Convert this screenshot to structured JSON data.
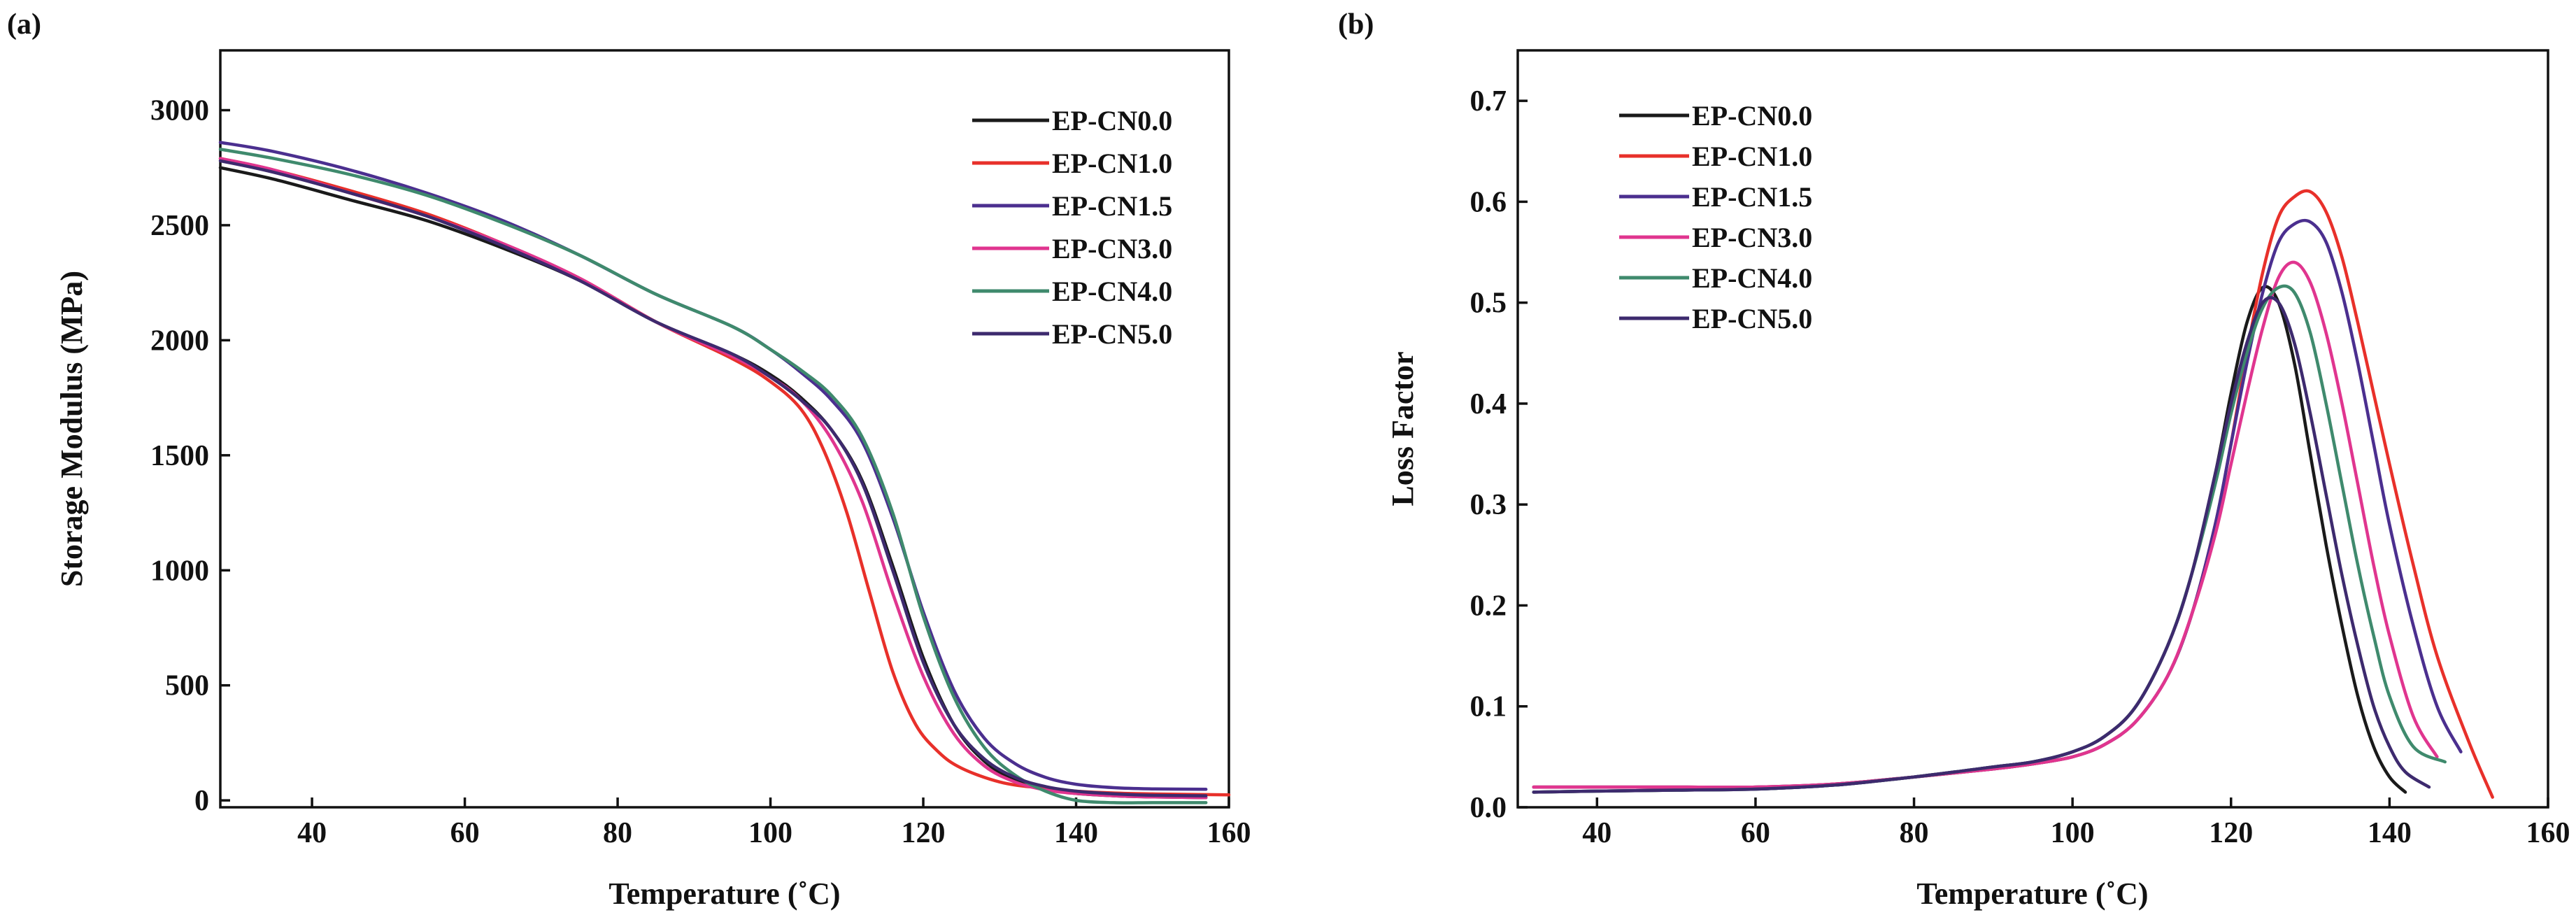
{
  "chart_data": [
    {
      "type": "line",
      "panel_label": "(a)",
      "title": "",
      "xlabel": "Temperature (˚C)",
      "ylabel": "Storage Modulus (MPa)",
      "xlim": [
        28,
        160
      ],
      "ylim": [
        -30,
        3260
      ],
      "xticks": [
        "40",
        "60",
        "80",
        "100",
        "120",
        "140",
        "160"
      ],
      "yticks": [
        "0",
        "500",
        "1000",
        "1500",
        "2000",
        "2500",
        "3000"
      ],
      "legend_position": "top-right",
      "series": [
        {
          "name": "EP-CN0.0",
          "color": "#1a1a1a",
          "x": [
            28,
            35,
            45,
            55,
            65,
            75,
            85,
            95,
            100,
            104,
            108,
            112,
            116,
            120,
            124,
            128,
            132,
            136,
            140,
            145,
            150,
            157
          ],
          "y": [
            2750,
            2700,
            2610,
            2520,
            2400,
            2260,
            2080,
            1940,
            1850,
            1750,
            1610,
            1390,
            1020,
            620,
            330,
            170,
            90,
            50,
            30,
            20,
            15,
            12
          ]
        },
        {
          "name": "EP-CN1.0",
          "color": "#e8302a",
          "x": [
            28,
            35,
            45,
            55,
            65,
            75,
            85,
            95,
            100,
            104,
            107,
            110,
            113,
            116,
            119,
            122,
            125,
            130,
            135,
            140,
            145,
            150,
            157,
            160
          ],
          "y": [
            2790,
            2740,
            2650,
            2550,
            2420,
            2270,
            2080,
            1920,
            1820,
            1700,
            1520,
            1250,
            900,
            560,
            330,
            210,
            140,
            80,
            55,
            40,
            32,
            28,
            25,
            24
          ]
        },
        {
          "name": "EP-CN1.5",
          "color": "#4b2f8f",
          "x": [
            28,
            35,
            45,
            55,
            65,
            75,
            85,
            95,
            100,
            104,
            108,
            112,
            116,
            120,
            124,
            128,
            132,
            136,
            140,
            145,
            150,
            157
          ],
          "y": [
            2860,
            2820,
            2740,
            2640,
            2520,
            2370,
            2200,
            2060,
            1960,
            1860,
            1740,
            1560,
            1230,
            820,
            480,
            270,
            160,
            100,
            70,
            55,
            50,
            48
          ]
        },
        {
          "name": "EP-CN3.0",
          "color": "#e0358f",
          "x": [
            28,
            35,
            45,
            55,
            65,
            75,
            85,
            95,
            100,
            104,
            108,
            112,
            116,
            120,
            124,
            128,
            132,
            136,
            140,
            145,
            150,
            157
          ],
          "y": [
            2790,
            2740,
            2640,
            2540,
            2420,
            2270,
            2080,
            1930,
            1840,
            1740,
            1570,
            1300,
            900,
            540,
            290,
            150,
            80,
            45,
            30,
            20,
            15,
            12
          ]
        },
        {
          "name": "EP-CN4.0",
          "color": "#3f8a6d",
          "x": [
            28,
            35,
            45,
            55,
            65,
            75,
            85,
            95,
            100,
            104,
            108,
            112,
            116,
            120,
            124,
            128,
            132,
            136,
            140,
            145,
            150,
            157
          ],
          "y": [
            2830,
            2790,
            2720,
            2630,
            2510,
            2370,
            2200,
            2060,
            1960,
            1870,
            1760,
            1580,
            1250,
            800,
            450,
            230,
            110,
            40,
            0,
            -10,
            -10,
            -10
          ]
        },
        {
          "name": "EP-CN5.0",
          "color": "#3d2a6e",
          "x": [
            28,
            35,
            45,
            55,
            65,
            75,
            85,
            95,
            100,
            104,
            108,
            112,
            116,
            120,
            124,
            128,
            132,
            136,
            140,
            145,
            150,
            157
          ],
          "y": [
            2780,
            2730,
            2640,
            2540,
            2410,
            2260,
            2080,
            1940,
            1840,
            1740,
            1610,
            1380,
            1000,
            600,
            330,
            180,
            100,
            60,
            40,
            28,
            22,
            20
          ]
        }
      ]
    },
    {
      "type": "line",
      "panel_label": "(b)",
      "title": "",
      "xlabel": "Temperature (˚C)",
      "ylabel": "Loss Factor",
      "xlim": [
        30,
        160
      ],
      "ylim": [
        0.0,
        0.75
      ],
      "xticks": [
        "40",
        "60",
        "80",
        "100",
        "120",
        "140",
        "160"
      ],
      "yticks": [
        "0.0",
        "0.1",
        "0.2",
        "0.3",
        "0.4",
        "0.5",
        "0.6",
        "0.7"
      ],
      "legend_position": "top-left",
      "series": [
        {
          "name": "EP-CN0.0",
          "color": "#1a1a1a",
          "x": [
            32,
            40,
            50,
            60,
            70,
            80,
            90,
            95,
            100,
            104,
            108,
            112,
            115,
            118,
            120,
            122,
            124,
            126,
            128,
            130,
            132,
            134,
            136,
            138,
            140,
            142
          ],
          "y": [
            0.015,
            0.016,
            0.017,
            0.018,
            0.022,
            0.03,
            0.04,
            0.045,
            0.055,
            0.07,
            0.1,
            0.16,
            0.23,
            0.33,
            0.41,
            0.48,
            0.515,
            0.5,
            0.44,
            0.35,
            0.26,
            0.18,
            0.11,
            0.06,
            0.03,
            0.015
          ]
        },
        {
          "name": "EP-CN1.0",
          "color": "#e8302a",
          "x": [
            32,
            40,
            50,
            60,
            70,
            80,
            90,
            95,
            100,
            104,
            108,
            112,
            115,
            118,
            120,
            122,
            124,
            126,
            128,
            130,
            132,
            134,
            136,
            138,
            140,
            143,
            146,
            150,
            153
          ],
          "y": [
            0.02,
            0.02,
            0.02,
            0.02,
            0.023,
            0.03,
            0.038,
            0.043,
            0.05,
            0.062,
            0.085,
            0.13,
            0.19,
            0.28,
            0.36,
            0.45,
            0.53,
            0.585,
            0.605,
            0.61,
            0.59,
            0.545,
            0.48,
            0.41,
            0.34,
            0.24,
            0.15,
            0.065,
            0.01
          ]
        },
        {
          "name": "EP-CN1.5",
          "color": "#4b2f8f",
          "x": [
            32,
            40,
            50,
            60,
            70,
            80,
            90,
            95,
            100,
            104,
            108,
            112,
            115,
            118,
            120,
            122,
            124,
            126,
            128,
            130,
            132,
            134,
            136,
            138,
            140,
            143,
            146,
            149
          ],
          "y": [
            0.02,
            0.02,
            0.02,
            0.02,
            0.023,
            0.03,
            0.038,
            0.043,
            0.05,
            0.062,
            0.085,
            0.13,
            0.19,
            0.28,
            0.36,
            0.44,
            0.51,
            0.56,
            0.578,
            0.58,
            0.56,
            0.51,
            0.44,
            0.36,
            0.28,
            0.18,
            0.1,
            0.055
          ]
        },
        {
          "name": "EP-CN3.0",
          "color": "#e0358f",
          "x": [
            32,
            40,
            50,
            60,
            70,
            80,
            90,
            95,
            100,
            104,
            108,
            112,
            115,
            118,
            120,
            122,
            124,
            126,
            128,
            130,
            132,
            134,
            136,
            138,
            140,
            143,
            146
          ],
          "y": [
            0.02,
            0.02,
            0.02,
            0.02,
            0.023,
            0.03,
            0.038,
            0.043,
            0.05,
            0.062,
            0.085,
            0.13,
            0.19,
            0.27,
            0.34,
            0.41,
            0.475,
            0.525,
            0.54,
            0.52,
            0.47,
            0.4,
            0.32,
            0.24,
            0.17,
            0.09,
            0.05
          ]
        },
        {
          "name": "EP-CN4.0",
          "color": "#3f8a6d",
          "x": [
            32,
            40,
            50,
            60,
            70,
            80,
            90,
            95,
            100,
            104,
            108,
            112,
            115,
            118,
            120,
            122,
            124,
            126,
            128,
            130,
            132,
            134,
            136,
            138,
            140,
            143,
            147
          ],
          "y": [
            0.015,
            0.016,
            0.017,
            0.018,
            0.022,
            0.03,
            0.04,
            0.045,
            0.055,
            0.07,
            0.1,
            0.16,
            0.23,
            0.32,
            0.39,
            0.45,
            0.495,
            0.515,
            0.51,
            0.47,
            0.4,
            0.32,
            0.24,
            0.17,
            0.11,
            0.06,
            0.045
          ]
        },
        {
          "name": "EP-CN5.0",
          "color": "#3d2a6e",
          "x": [
            32,
            40,
            50,
            60,
            70,
            80,
            90,
            95,
            100,
            104,
            108,
            112,
            115,
            118,
            120,
            122,
            124,
            126,
            128,
            130,
            132,
            134,
            136,
            138,
            140,
            142,
            145
          ],
          "y": [
            0.015,
            0.016,
            0.017,
            0.018,
            0.022,
            0.03,
            0.04,
            0.045,
            0.055,
            0.07,
            0.1,
            0.16,
            0.23,
            0.33,
            0.4,
            0.46,
            0.5,
            0.5,
            0.46,
            0.39,
            0.31,
            0.23,
            0.16,
            0.1,
            0.06,
            0.035,
            0.02
          ]
        }
      ]
    }
  ]
}
